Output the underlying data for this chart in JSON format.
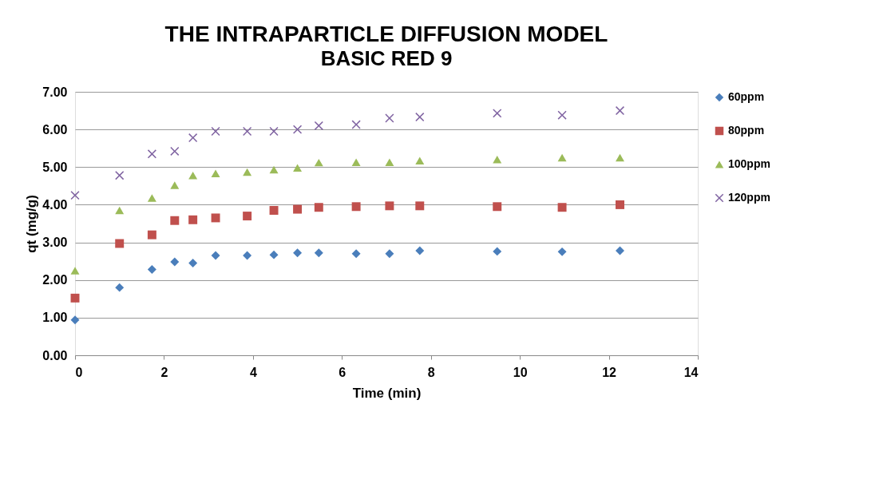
{
  "chart_data": {
    "type": "scatter",
    "title": "THE INTRAPARTICLE DIFFUSION MODEL",
    "subtitle": "BASIC RED  9",
    "xlabel": "Time (min)",
    "ylabel": "qt (mg/g)",
    "x": [
      0,
      1,
      1.73,
      2.24,
      2.65,
      3.16,
      3.87,
      4.47,
      5,
      5.48,
      6.32,
      7.07,
      7.75,
      9.49,
      10.95,
      12.25
    ],
    "series": [
      {
        "name": "60ppm",
        "color": "#4a7ebb",
        "marker": "diamond",
        "values": [
          0.94,
          1.8,
          2.28,
          2.48,
          2.45,
          2.65,
          2.65,
          2.67,
          2.72,
          2.72,
          2.7,
          2.7,
          2.78,
          2.76,
          2.75,
          2.78
        ]
      },
      {
        "name": "80ppm",
        "color": "#c0504d",
        "marker": "square",
        "values": [
          1.52,
          2.97,
          3.2,
          3.58,
          3.6,
          3.65,
          3.7,
          3.85,
          3.88,
          3.93,
          3.95,
          3.97,
          3.97,
          3.95,
          3.93,
          4.0
        ]
      },
      {
        "name": "100ppm",
        "color": "#9bbb59",
        "marker": "triangle",
        "values": [
          2.25,
          3.85,
          4.18,
          4.52,
          4.78,
          4.83,
          4.87,
          4.93,
          4.98,
          5.12,
          5.13,
          5.13,
          5.17,
          5.2,
          5.25,
          5.25
        ]
      },
      {
        "name": "120ppm",
        "color": "#8064a2",
        "marker": "cross",
        "values": [
          4.25,
          4.78,
          5.35,
          5.42,
          5.78,
          5.95,
          5.95,
          5.95,
          6.0,
          6.1,
          6.13,
          6.3,
          6.33,
          6.43,
          6.38,
          6.5
        ]
      }
    ],
    "xlim": [
      0,
      14
    ],
    "xticks": [
      0,
      2,
      4,
      6,
      8,
      10,
      12,
      14
    ],
    "ylim": [
      0,
      7
    ],
    "yticks": [
      {
        "value": 0,
        "label": "0.00"
      },
      {
        "value": 1,
        "label": "1.00"
      },
      {
        "value": 2,
        "label": "2.00"
      },
      {
        "value": 3,
        "label": "3.00"
      },
      {
        "value": 4,
        "label": "4.00"
      },
      {
        "value": 5,
        "label": "5.00"
      },
      {
        "value": 6,
        "label": "6.00"
      },
      {
        "value": 7,
        "label": "7.00"
      }
    ],
    "grid": "y",
    "legend": "right"
  }
}
